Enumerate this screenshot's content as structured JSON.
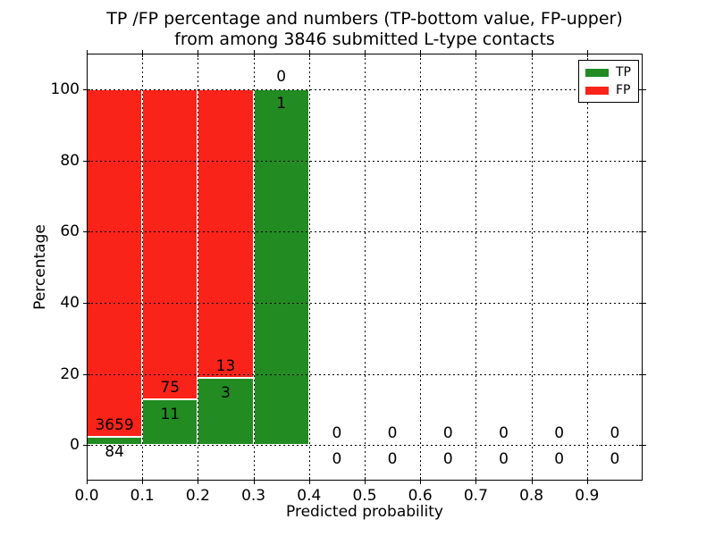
{
  "chart_data": {
    "type": "bar",
    "stacked": true,
    "title_line1": "TP /FP percentage and numbers (TP-bottom value, FP-upper)",
    "title_line2": "from among 3846 submitted L-type contacts",
    "xlabel": "Predicted probability",
    "ylabel": "Percentage",
    "xlim": [
      0.0,
      1.0
    ],
    "ylim": [
      -10,
      110
    ],
    "x_tick_labels": [
      "0.0",
      "0.1",
      "0.2",
      "0.3",
      "0.4",
      "0.5",
      "0.6",
      "0.7",
      "0.8",
      "0.9"
    ],
    "y_tick_values": [
      0,
      20,
      40,
      60,
      80,
      100
    ],
    "grid": "dotted black, drawn above bars",
    "total_submitted": 3846,
    "bin_width": 0.1,
    "note": "Each bin stacked to 100%: TP (green, bottom) + FP (red, top). Numbers show raw counts: TP below, FP above the green/red boundary.",
    "bins": [
      {
        "x_start": 0.0,
        "x_end": 0.1,
        "tp_count": 84,
        "fp_count": 3659,
        "tp_pct": 2.24,
        "bar_top_pct": 100
      },
      {
        "x_start": 0.1,
        "x_end": 0.2,
        "tp_count": 11,
        "fp_count": 75,
        "tp_pct": 12.79,
        "bar_top_pct": 100
      },
      {
        "x_start": 0.2,
        "x_end": 0.3,
        "tp_count": 3,
        "fp_count": 13,
        "tp_pct": 18.75,
        "bar_top_pct": 100
      },
      {
        "x_start": 0.3,
        "x_end": 0.4,
        "tp_count": 1,
        "fp_count": 0,
        "tp_pct": 100,
        "bar_top_pct": 100
      },
      {
        "x_start": 0.4,
        "x_end": 0.5,
        "tp_count": 0,
        "fp_count": 0,
        "tp_pct": 0,
        "bar_top_pct": 0
      },
      {
        "x_start": 0.5,
        "x_end": 0.6,
        "tp_count": 0,
        "fp_count": 0,
        "tp_pct": 0,
        "bar_top_pct": 0
      },
      {
        "x_start": 0.6,
        "x_end": 0.7,
        "tp_count": 0,
        "fp_count": 0,
        "tp_pct": 0,
        "bar_top_pct": 0
      },
      {
        "x_start": 0.7,
        "x_end": 0.8,
        "tp_count": 0,
        "fp_count": 0,
        "tp_pct": 0,
        "bar_top_pct": 0
      },
      {
        "x_start": 0.8,
        "x_end": 0.9,
        "tp_count": 0,
        "fp_count": 0,
        "tp_pct": 0,
        "bar_top_pct": 0
      },
      {
        "x_start": 0.9,
        "x_end": 1.0,
        "tp_count": 0,
        "fp_count": 0,
        "tp_pct": 0,
        "bar_top_pct": 0
      }
    ],
    "legend": {
      "position": "upper right",
      "entries": [
        {
          "label": "TP",
          "color": "#228b22"
        },
        {
          "label": "FP",
          "color": "#fa2319"
        }
      ]
    },
    "colors": {
      "tp": "#228b22",
      "fp": "#fa2319",
      "grid": "#000000",
      "text": "#000000",
      "background": "#ffffff",
      "bar_edge": "#ffffff"
    }
  }
}
